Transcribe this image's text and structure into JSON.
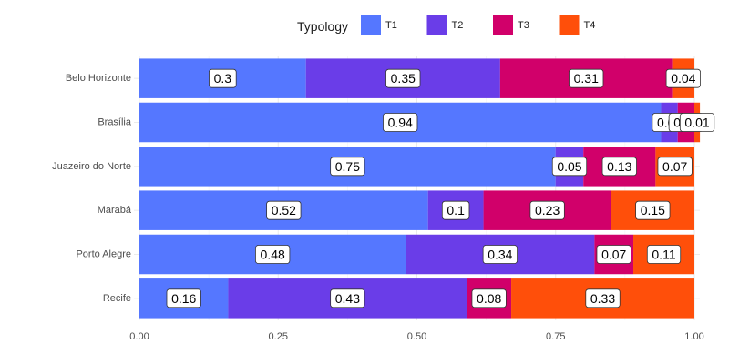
{
  "chart_data": {
    "type": "bar",
    "orientation": "horizontal",
    "stacked": true,
    "categories": [
      "Belo Horizonte",
      "Brasília",
      "Juazeiro do Norte",
      "Marabá",
      "Porto Alegre",
      "Recife"
    ],
    "series": [
      {
        "name": "T1",
        "color": "#5577ff",
        "values": [
          0.3,
          0.94,
          0.75,
          0.52,
          0.48,
          0.16
        ]
      },
      {
        "name": "T2",
        "color": "#6a3de8",
        "values": [
          0.35,
          0.03,
          0.05,
          0.1,
          0.34,
          0.43
        ]
      },
      {
        "name": "T3",
        "color": "#d1006a",
        "values": [
          0.31,
          0.03,
          0.13,
          0.23,
          0.07,
          0.08
        ]
      },
      {
        "name": "T4",
        "color": "#ff4f0a",
        "values": [
          0.04,
          0.01,
          0.07,
          0.15,
          0.11,
          0.33
        ]
      }
    ],
    "value_labels": [
      [
        "0.3",
        "0.35",
        "0.31",
        "0.04"
      ],
      [
        "0.94",
        "0.03",
        "0.03",
        "0.01"
      ],
      [
        "0.75",
        "0.05",
        "0.13",
        "0.07"
      ],
      [
        "0.52",
        "0.1",
        "0.23",
        "0.15"
      ],
      [
        "0.48",
        "0.34",
        "0.07",
        "0.11"
      ],
      [
        "0.16",
        "0.43",
        "0.08",
        "0.33"
      ]
    ],
    "legend": {
      "title": "Typology",
      "position": "top"
    },
    "xlim": [
      0,
      1
    ],
    "xticks": [
      0,
      0.25,
      0.5,
      0.75,
      1
    ],
    "xtick_labels": [
      "0.00",
      "0.25",
      "0.50",
      "0.75",
      "1.00"
    ],
    "grid": true,
    "xlabel": "",
    "ylabel": ""
  }
}
